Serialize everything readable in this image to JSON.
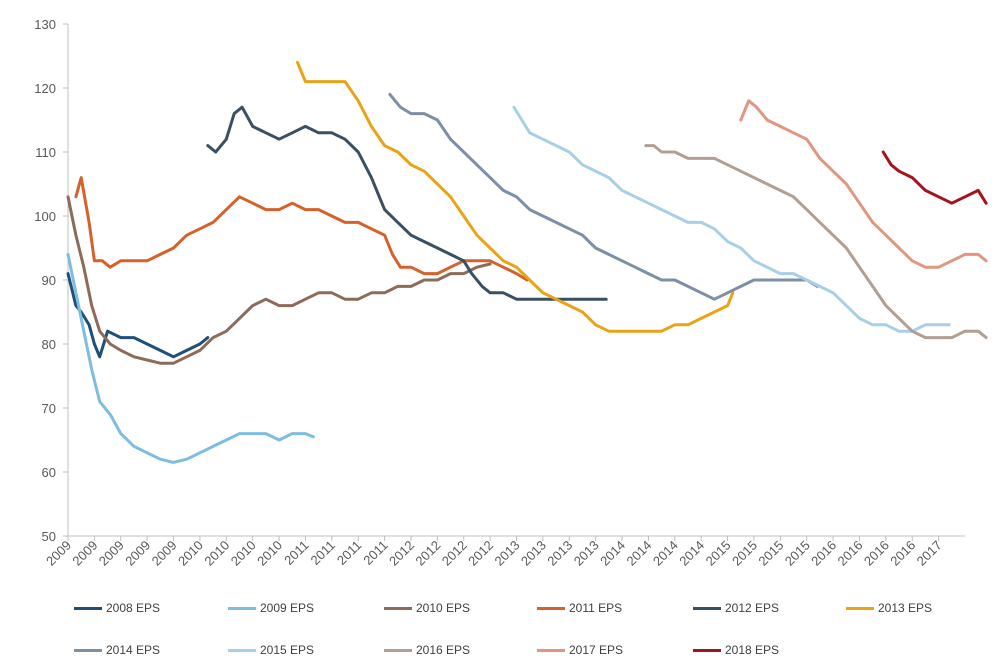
{
  "chart_data": {
    "type": "line",
    "title": "",
    "xlabel": "",
    "ylabel": "",
    "ylim": [
      50,
      130
    ],
    "yticks": [
      50,
      60,
      70,
      80,
      90,
      100,
      110,
      120,
      130
    ],
    "x_tick_labels": [
      "2009",
      "2009",
      "2009",
      "2009",
      "2009",
      "2010",
      "2010",
      "2010",
      "2010",
      "2011",
      "2011",
      "2011",
      "2011",
      "2012",
      "2012",
      "2012",
      "2012",
      "2013",
      "2013",
      "2013",
      "2013",
      "2014",
      "2014",
      "2014",
      "2014",
      "2015",
      "2015",
      "2015",
      "2015",
      "2016",
      "2016",
      "2016",
      "2016",
      "2017"
    ],
    "x_domain": [
      0,
      34
    ],
    "grid": false,
    "legend_position": "bottom",
    "series": [
      {
        "name": "2008 EPS",
        "color": "#1f4e79",
        "points": [
          [
            0,
            91
          ],
          [
            0.3,
            86
          ],
          [
            0.5,
            85
          ],
          [
            0.8,
            83
          ],
          [
            1,
            80
          ],
          [
            1.2,
            78
          ],
          [
            1.5,
            82
          ],
          [
            2,
            81
          ],
          [
            2.5,
            81
          ],
          [
            3,
            80
          ],
          [
            3.5,
            79
          ],
          [
            4,
            78
          ],
          [
            4.5,
            79
          ],
          [
            5,
            80
          ],
          [
            5.3,
            81
          ]
        ]
      },
      {
        "name": "2009 EPS",
        "color": "#7ebde0",
        "points": [
          [
            0,
            94
          ],
          [
            0.3,
            88
          ],
          [
            0.6,
            82
          ],
          [
            0.9,
            76
          ],
          [
            1.2,
            71
          ],
          [
            1.6,
            69
          ],
          [
            2,
            66
          ],
          [
            2.5,
            64
          ],
          [
            3,
            63
          ],
          [
            3.5,
            62
          ],
          [
            4,
            61.5
          ],
          [
            4.5,
            62
          ],
          [
            5,
            63
          ],
          [
            5.5,
            64
          ],
          [
            6,
            65
          ],
          [
            6.5,
            66
          ],
          [
            7,
            66
          ],
          [
            7.5,
            66
          ],
          [
            8,
            65
          ],
          [
            8.5,
            66
          ],
          [
            9,
            66
          ],
          [
            9.3,
            65.5
          ]
        ]
      },
      {
        "name": "2010 EPS",
        "color": "#8c6b5a",
        "points": [
          [
            0,
            103
          ],
          [
            0.3,
            97
          ],
          [
            0.6,
            92
          ],
          [
            0.9,
            86
          ],
          [
            1.2,
            82
          ],
          [
            1.6,
            80
          ],
          [
            2,
            79
          ],
          [
            2.5,
            78
          ],
          [
            3,
            77.5
          ],
          [
            3.5,
            77
          ],
          [
            4,
            77
          ],
          [
            4.5,
            78
          ],
          [
            5,
            79
          ],
          [
            5.5,
            81
          ],
          [
            6,
            82
          ],
          [
            6.5,
            84
          ],
          [
            7,
            86
          ],
          [
            7.5,
            87
          ],
          [
            8,
            86
          ],
          [
            8.5,
            86
          ],
          [
            9,
            87
          ],
          [
            9.5,
            88
          ],
          [
            10,
            88
          ],
          [
            10.5,
            87
          ],
          [
            11,
            87
          ],
          [
            11.5,
            88
          ],
          [
            12,
            88
          ],
          [
            12.5,
            89
          ],
          [
            13,
            89
          ],
          [
            13.5,
            90
          ],
          [
            14,
            90
          ],
          [
            14.5,
            91
          ],
          [
            15,
            91
          ],
          [
            15.5,
            92
          ],
          [
            16,
            92.5
          ]
        ]
      },
      {
        "name": "2011 EPS",
        "color": "#d4622a",
        "points": [
          [
            0.3,
            103
          ],
          [
            0.5,
            106
          ],
          [
            0.8,
            99
          ],
          [
            1,
            93
          ],
          [
            1.3,
            93
          ],
          [
            1.6,
            92
          ],
          [
            2,
            93
          ],
          [
            2.5,
            93
          ],
          [
            3,
            93
          ],
          [
            3.5,
            94
          ],
          [
            4,
            95
          ],
          [
            4.5,
            97
          ],
          [
            5,
            98
          ],
          [
            5.5,
            99
          ],
          [
            6,
            101
          ],
          [
            6.5,
            103
          ],
          [
            7,
            102
          ],
          [
            7.5,
            101
          ],
          [
            8,
            101
          ],
          [
            8.5,
            102
          ],
          [
            9,
            101
          ],
          [
            9.5,
            101
          ],
          [
            10,
            100
          ],
          [
            10.5,
            99
          ],
          [
            11,
            99
          ],
          [
            11.5,
            98
          ],
          [
            12,
            97
          ],
          [
            12.3,
            94
          ],
          [
            12.6,
            92
          ],
          [
            13,
            92
          ],
          [
            13.5,
            91
          ],
          [
            14,
            91
          ],
          [
            14.5,
            92
          ],
          [
            15,
            93
          ],
          [
            15.5,
            93
          ],
          [
            16,
            93
          ],
          [
            16.5,
            92
          ],
          [
            17,
            91
          ],
          [
            17.4,
            90
          ]
        ]
      },
      {
        "name": "2012 EPS",
        "color": "#3b4f63",
        "points": [
          [
            5.3,
            111
          ],
          [
            5.6,
            110
          ],
          [
            6,
            112
          ],
          [
            6.3,
            116
          ],
          [
            6.6,
            117
          ],
          [
            7,
            114
          ],
          [
            7.5,
            113
          ],
          [
            8,
            112
          ],
          [
            8.5,
            113
          ],
          [
            9,
            114
          ],
          [
            9.5,
            113
          ],
          [
            10,
            113
          ],
          [
            10.5,
            112
          ],
          [
            11,
            110
          ],
          [
            11.5,
            106
          ],
          [
            12,
            101
          ],
          [
            12.5,
            99
          ],
          [
            13,
            97
          ],
          [
            13.5,
            96
          ],
          [
            14,
            95
          ],
          [
            14.5,
            94
          ],
          [
            15,
            93
          ],
          [
            15.3,
            91
          ],
          [
            15.7,
            89
          ],
          [
            16,
            88
          ],
          [
            16.5,
            88
          ],
          [
            17,
            87
          ],
          [
            17.5,
            87
          ],
          [
            18,
            87
          ],
          [
            18.5,
            87
          ],
          [
            19,
            87
          ],
          [
            19.5,
            87
          ],
          [
            20,
            87
          ],
          [
            20.4,
            87
          ]
        ]
      },
      {
        "name": "2013 EPS",
        "color": "#e8a317",
        "points": [
          [
            8.7,
            124
          ],
          [
            9,
            121
          ],
          [
            9.5,
            121
          ],
          [
            10,
            121
          ],
          [
            10.5,
            121
          ],
          [
            11,
            118
          ],
          [
            11.5,
            114
          ],
          [
            12,
            111
          ],
          [
            12.5,
            110
          ],
          [
            13,
            108
          ],
          [
            13.5,
            107
          ],
          [
            14,
            105
          ],
          [
            14.5,
            103
          ],
          [
            15,
            100
          ],
          [
            15.5,
            97
          ],
          [
            16,
            95
          ],
          [
            16.5,
            93
          ],
          [
            17,
            92
          ],
          [
            17.5,
            90
          ],
          [
            18,
            88
          ],
          [
            18.5,
            87
          ],
          [
            19,
            86
          ],
          [
            19.5,
            85
          ],
          [
            20,
            83
          ],
          [
            20.5,
            82
          ],
          [
            21,
            82
          ],
          [
            21.5,
            82
          ],
          [
            22,
            82
          ],
          [
            22.5,
            82
          ],
          [
            23,
            83
          ],
          [
            23.5,
            83
          ],
          [
            24,
            84
          ],
          [
            24.5,
            85
          ],
          [
            25,
            86
          ],
          [
            25.2,
            88
          ]
        ]
      },
      {
        "name": "2014 EPS",
        "color": "#7d8fa6",
        "points": [
          [
            12.2,
            119
          ],
          [
            12.6,
            117
          ],
          [
            13,
            116
          ],
          [
            13.5,
            116
          ],
          [
            14,
            115
          ],
          [
            14.5,
            112
          ],
          [
            15,
            110
          ],
          [
            15.5,
            108
          ],
          [
            16,
            106
          ],
          [
            16.5,
            104
          ],
          [
            17,
            103
          ],
          [
            17.5,
            101
          ],
          [
            18,
            100
          ],
          [
            18.5,
            99
          ],
          [
            19,
            98
          ],
          [
            19.5,
            97
          ],
          [
            20,
            95
          ],
          [
            20.5,
            94
          ],
          [
            21,
            93
          ],
          [
            21.5,
            92
          ],
          [
            22,
            91
          ],
          [
            22.5,
            90
          ],
          [
            23,
            90
          ],
          [
            23.5,
            89
          ],
          [
            24,
            88
          ],
          [
            24.5,
            87
          ],
          [
            25,
            88
          ],
          [
            25.5,
            89
          ],
          [
            26,
            90
          ],
          [
            26.5,
            90
          ],
          [
            27,
            90
          ],
          [
            27.5,
            90
          ],
          [
            28,
            90
          ],
          [
            28.4,
            89
          ]
        ]
      },
      {
        "name": "2015 EPS",
        "color": "#a9cfe6",
        "points": [
          [
            16.9,
            117
          ],
          [
            17.2,
            115
          ],
          [
            17.5,
            113
          ],
          [
            18,
            112
          ],
          [
            18.5,
            111
          ],
          [
            19,
            110
          ],
          [
            19.5,
            108
          ],
          [
            20,
            107
          ],
          [
            20.5,
            106
          ],
          [
            21,
            104
          ],
          [
            21.5,
            103
          ],
          [
            22,
            102
          ],
          [
            22.5,
            101
          ],
          [
            23,
            100
          ],
          [
            23.5,
            99
          ],
          [
            24,
            99
          ],
          [
            24.5,
            98
          ],
          [
            25,
            96
          ],
          [
            25.5,
            95
          ],
          [
            26,
            93
          ],
          [
            26.5,
            92
          ],
          [
            27,
            91
          ],
          [
            27.5,
            91
          ],
          [
            28,
            90
          ],
          [
            28.5,
            89
          ],
          [
            29,
            88
          ],
          [
            29.5,
            86
          ],
          [
            30,
            84
          ],
          [
            30.5,
            83
          ],
          [
            31,
            83
          ],
          [
            31.5,
            82
          ],
          [
            32,
            82
          ],
          [
            32.5,
            83
          ],
          [
            33,
            83
          ],
          [
            33.4,
            83
          ]
        ]
      },
      {
        "name": "2016 EPS",
        "color": "#b09f92",
        "points": [
          [
            21.9,
            111
          ],
          [
            22.2,
            111
          ],
          [
            22.5,
            110
          ],
          [
            23,
            110
          ],
          [
            23.5,
            109
          ],
          [
            24,
            109
          ],
          [
            24.5,
            109
          ],
          [
            25,
            108
          ],
          [
            25.5,
            107
          ],
          [
            26,
            106
          ],
          [
            26.5,
            105
          ],
          [
            27,
            104
          ],
          [
            27.5,
            103
          ],
          [
            28,
            101
          ],
          [
            28.5,
            99
          ],
          [
            29,
            97
          ],
          [
            29.5,
            95
          ],
          [
            30,
            92
          ],
          [
            30.5,
            89
          ],
          [
            31,
            86
          ],
          [
            31.5,
            84
          ],
          [
            32,
            82
          ],
          [
            32.5,
            81
          ],
          [
            33,
            81
          ],
          [
            33.5,
            81
          ],
          [
            34,
            82
          ],
          [
            34.5,
            82
          ],
          [
            34.8,
            81
          ]
        ]
      },
      {
        "name": "2017 EPS",
        "color": "#e09681",
        "points": [
          [
            25.5,
            115
          ],
          [
            25.8,
            118
          ],
          [
            26.1,
            117
          ],
          [
            26.5,
            115
          ],
          [
            27,
            114
          ],
          [
            27.5,
            113
          ],
          [
            28,
            112
          ],
          [
            28.5,
            109
          ],
          [
            29,
            107
          ],
          [
            29.5,
            105
          ],
          [
            30,
            102
          ],
          [
            30.5,
            99
          ],
          [
            31,
            97
          ],
          [
            31.5,
            95
          ],
          [
            32,
            93
          ],
          [
            32.5,
            92
          ],
          [
            33,
            92
          ],
          [
            33.5,
            93
          ],
          [
            34,
            94
          ],
          [
            34.5,
            94
          ],
          [
            34.8,
            93
          ]
        ]
      },
      {
        "name": "2018 EPS",
        "color": "#a3141f",
        "points": [
          [
            30.9,
            110
          ],
          [
            31.2,
            108
          ],
          [
            31.5,
            107
          ],
          [
            32,
            106
          ],
          [
            32.5,
            104
          ],
          [
            33,
            103
          ],
          [
            33.5,
            102
          ],
          [
            34,
            103
          ],
          [
            34.5,
            104
          ],
          [
            34.8,
            102
          ]
        ]
      }
    ]
  }
}
